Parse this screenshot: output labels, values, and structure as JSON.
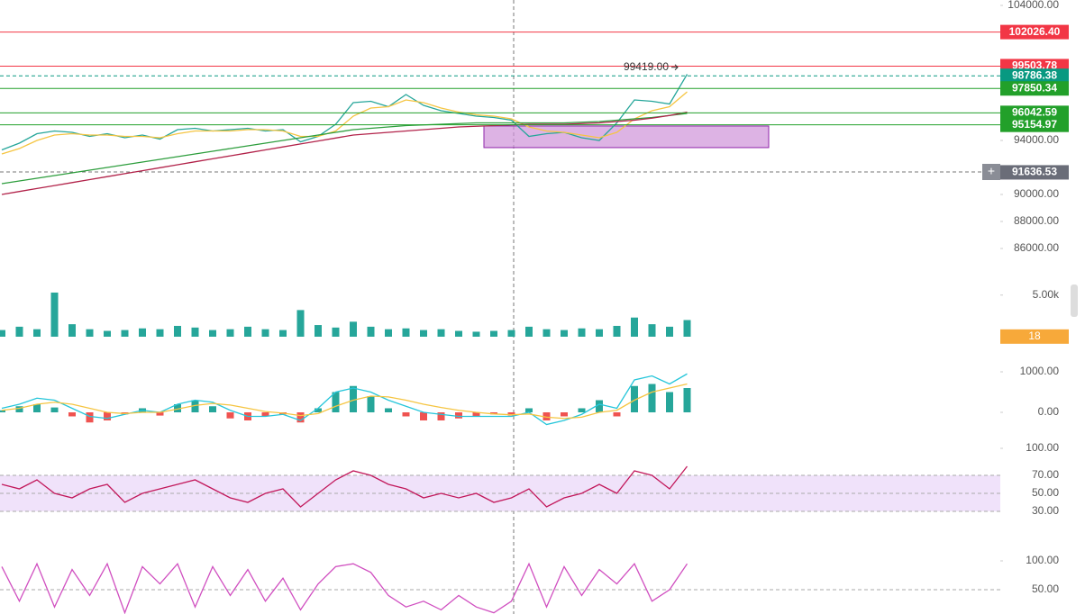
{
  "panes": {
    "price": {
      "type": "line",
      "ylim": [
        84400,
        104400
      ],
      "yticks": [
        {
          "value": 104000,
          "label": "104000.00"
        },
        {
          "value": 94000,
          "label": "94000.00"
        },
        {
          "value": 90000,
          "label": "90000.00"
        },
        {
          "value": 88000,
          "label": "88000.00"
        },
        {
          "value": 86000,
          "label": "86000.00"
        }
      ],
      "series": [
        {
          "color": "#26a69a",
          "values": [
            93300,
            93800,
            94500,
            94700,
            94600,
            94300,
            94500,
            94200,
            94400,
            94100,
            94800,
            94900,
            94700,
            94800,
            94900,
            94700,
            94800,
            93900,
            94300,
            95200,
            96800,
            96900,
            96500,
            97400,
            96600,
            96200,
            96000,
            95800,
            95700,
            95500,
            94300,
            94500,
            94600,
            94200,
            94000,
            95300,
            97000,
            96900,
            96700,
            98900
          ]
        },
        {
          "color": "#f5c542",
          "values": [
            93000,
            93400,
            94000,
            94400,
            94500,
            94400,
            94400,
            94300,
            94300,
            94200,
            94500,
            94700,
            94700,
            94700,
            94800,
            94800,
            94700,
            94300,
            94300,
            94700,
            95800,
            96400,
            96500,
            97000,
            96800,
            96400,
            96100,
            95900,
            95800,
            95600,
            95000,
            94700,
            94600,
            94400,
            94200,
            94600,
            95600,
            96200,
            96500,
            97600
          ]
        },
        {
          "color": "#2e9e3e",
          "values": [
            90800,
            91000,
            91200,
            91400,
            91600,
            91800,
            92000,
            92200,
            92400,
            92600,
            92800,
            93000,
            93200,
            93400,
            93600,
            93800,
            94000,
            94200,
            94400,
            94600,
            94800,
            94900,
            95000,
            95100,
            95150,
            95200,
            95250,
            95300,
            95300,
            95300,
            95300,
            95300,
            95300,
            95350,
            95400,
            95500,
            95600,
            95700,
            95850,
            96000
          ]
        },
        {
          "color": "#b2234a",
          "values": [
            90000,
            90220,
            90440,
            90660,
            90880,
            91100,
            91320,
            91540,
            91760,
            91980,
            92200,
            92420,
            92640,
            92860,
            93080,
            93300,
            93520,
            93740,
            93960,
            94180,
            94400,
            94500,
            94600,
            94700,
            94800,
            94900,
            95000,
            95050,
            95100,
            95150,
            95200,
            95200,
            95200,
            95250,
            95300,
            95400,
            95500,
            95650,
            95850,
            96100
          ]
        }
      ],
      "levels": [
        {
          "value": 102026.4,
          "label": "102026.40",
          "color": "#f23645",
          "dashed": false
        },
        {
          "value": 99503.78,
          "label": "99503.78",
          "color": "#f23645",
          "dashed": false
        },
        {
          "value": 98786.38,
          "label": "98786.38",
          "color": "#089981",
          "dashed": true
        },
        {
          "value": 97850.34,
          "label": "97850.34",
          "color": "#22a02a",
          "dashed": false
        },
        {
          "value": 96042.59,
          "label": "96042.59",
          "color": "#22a02a",
          "dashed": false
        },
        {
          "value": 95154.97,
          "label": "95154.97",
          "color": "#22a02a",
          "dashed": false
        },
        {
          "value": 91636.53,
          "label": "91636.53",
          "color": "#6a6d78",
          "dashed": true
        }
      ],
      "annotation": {
        "value": 99419,
        "label": "99419.00"
      },
      "zone": {
        "low": 93470,
        "high": 95070,
        "color": "#ce93d8"
      }
    },
    "volume": {
      "type": "bar",
      "ylim": [
        0,
        8000
      ],
      "yticks": [
        {
          "value": 5000,
          "label": "5.00k"
        }
      ],
      "color": "#26a69a",
      "current": 18,
      "values": [
        800,
        1200,
        900,
        5300,
        1500,
        900,
        700,
        800,
        1000,
        900,
        1300,
        1100,
        800,
        900,
        1200,
        900,
        800,
        3200,
        1400,
        1100,
        1800,
        1200,
        900,
        1000,
        800,
        900,
        700,
        600,
        700,
        800,
        1200,
        900,
        800,
        1000,
        900,
        1300,
        2300,
        1500,
        1200,
        2000
      ]
    },
    "macd": {
      "type": "bar",
      "ylim": [
        -700,
        1500
      ],
      "yticks": [
        {
          "value": 1000,
          "label": "1000.00"
        },
        {
          "value": 0,
          "label": "0.00"
        }
      ],
      "up_color": "#26a69a",
      "down_color": "#ef5350",
      "values": [
        50,
        150,
        200,
        120,
        -100,
        -250,
        -200,
        -50,
        100,
        -80,
        200,
        300,
        150,
        -150,
        -200,
        -100,
        -50,
        -250,
        100,
        500,
        650,
        400,
        100,
        -100,
        -200,
        -200,
        -150,
        -100,
        -50,
        -80,
        100,
        -200,
        -100,
        100,
        300,
        -100,
        650,
        700,
        500,
        600
      ],
      "series": [
        {
          "color": "#26c6da",
          "values": [
            100,
            200,
            350,
            300,
            100,
            -100,
            -150,
            -50,
            50,
            0,
            200,
            300,
            250,
            50,
            -100,
            -100,
            -50,
            -200,
            100,
            500,
            600,
            500,
            300,
            150,
            0,
            -50,
            -100,
            -100,
            -100,
            -100,
            0,
            -300,
            -200,
            -50,
            200,
            100,
            800,
            900,
            700,
            950
          ]
        },
        {
          "color": "#f5c542",
          "values": [
            50,
            100,
            200,
            250,
            200,
            100,
            0,
            -30,
            0,
            0,
            80,
            170,
            220,
            180,
            100,
            20,
            -20,
            -80,
            -30,
            150,
            300,
            400,
            380,
            300,
            200,
            120,
            50,
            0,
            -40,
            -60,
            -40,
            -120,
            -150,
            -120,
            0,
            50,
            300,
            500,
            600,
            700
          ]
        }
      ]
    },
    "rsi": {
      "type": "line",
      "ylim": [
        0,
        105
      ],
      "yticks": [
        {
          "value": 100,
          "label": "100.00"
        },
        {
          "value": 70,
          "label": "70.00"
        },
        {
          "value": 50,
          "label": "50.00"
        },
        {
          "value": 30,
          "label": "30.00"
        }
      ],
      "band": [
        30,
        70
      ],
      "series": [
        {
          "color": "#c2185b",
          "values": [
            60,
            55,
            65,
            50,
            45,
            55,
            60,
            40,
            50,
            55,
            60,
            65,
            55,
            45,
            40,
            50,
            55,
            35,
            50,
            65,
            75,
            70,
            60,
            55,
            45,
            50,
            45,
            50,
            40,
            45,
            55,
            35,
            45,
            50,
            60,
            50,
            75,
            70,
            55,
            80
          ]
        }
      ]
    },
    "stoch": {
      "type": "line",
      "ylim": [
        8,
        110
      ],
      "yticks": [
        {
          "value": 100,
          "label": "100.00"
        },
        {
          "value": 50,
          "label": "50.00"
        }
      ],
      "series": [
        {
          "color": "#d04fc0",
          "values": [
            90,
            30,
            95,
            20,
            85,
            40,
            95,
            10,
            90,
            60,
            95,
            20,
            90,
            40,
            85,
            30,
            70,
            15,
            60,
            90,
            95,
            80,
            40,
            20,
            30,
            15,
            40,
            20,
            10,
            30,
            95,
            20,
            90,
            40,
            85,
            60,
            95,
            30,
            50,
            95
          ]
        }
      ]
    }
  }
}
